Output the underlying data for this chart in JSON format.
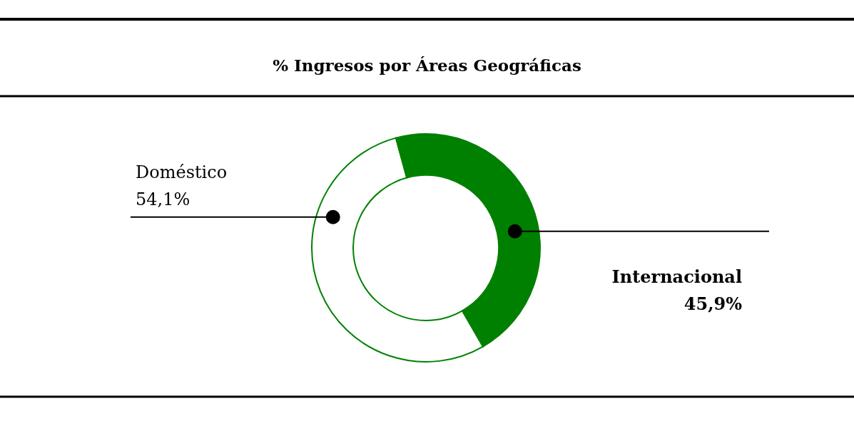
{
  "chart_data": {
    "type": "donut",
    "title": "% Ingresos por Áreas Geográficas",
    "categories": [
      "Doméstico",
      "Internacional"
    ],
    "values": [
      54.1,
      45.9
    ],
    "colors": [
      "#ffffff",
      "#008000"
    ],
    "value_labels": [
      "54,1%",
      "45,9%"
    ]
  }
}
